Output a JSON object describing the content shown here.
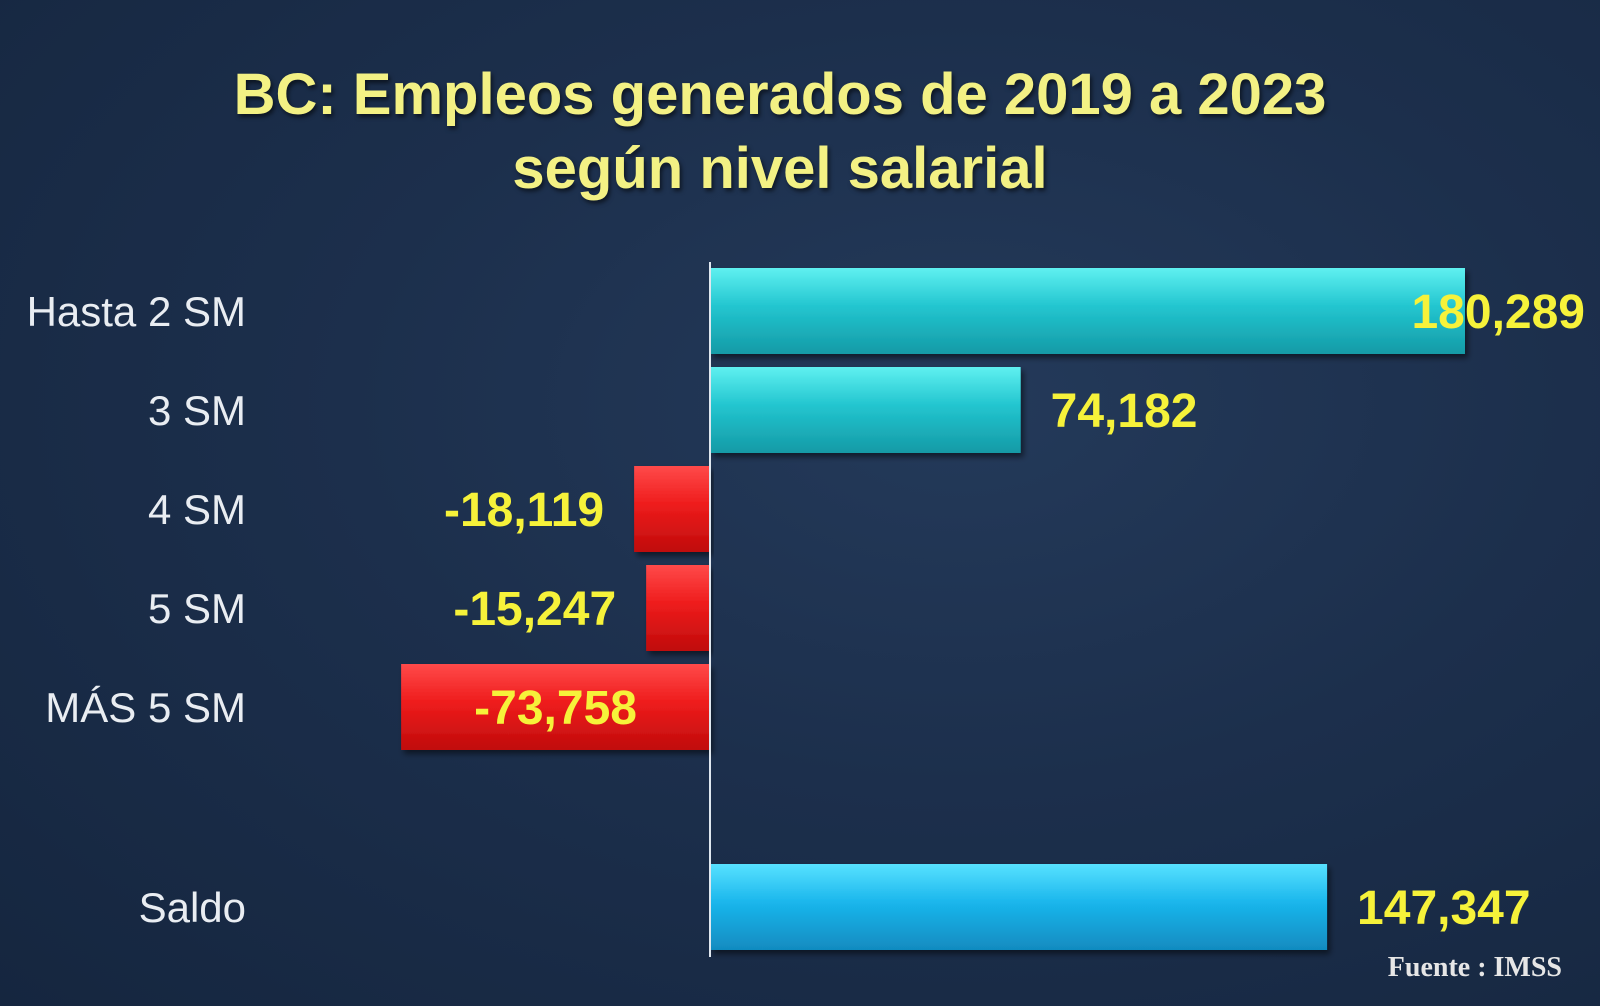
{
  "chart_data": {
    "type": "bar",
    "orientation": "horizontal",
    "title": "BC: Empleos generados de 2019 a 2023 según nivel salarial",
    "title_lines": [
      "BC: Empleos generados de 2019 a 2023",
      "según nivel salarial"
    ],
    "categories": [
      "Hasta 2 SM",
      "3 SM",
      "4 SM",
      "5 SM",
      "MÁS 5 SM",
      "Saldo"
    ],
    "values": [
      180289,
      74182,
      -18119,
      -15247,
      -73758,
      147347
    ],
    "value_labels": [
      "180,289",
      "74,182",
      "-18,119",
      "-15,247",
      "-73,758",
      "147,347"
    ],
    "colors": {
      "positive": "#26c6cf",
      "negative": "#ee1c1c",
      "total": "#1cb8ea",
      "value_label": "#f6f23a",
      "title": "#f3f184"
    },
    "xlim": [
      -170000,
      190000
    ],
    "grid": false,
    "legend": "none"
  },
  "source_text": "Fuente : IMSS"
}
